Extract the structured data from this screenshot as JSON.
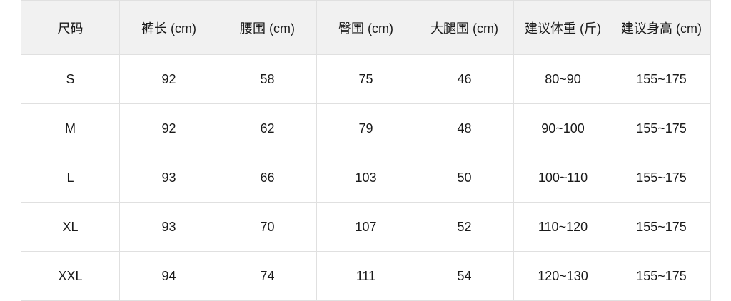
{
  "table": {
    "headers": [
      "尺码",
      "裤长 (cm)",
      "腰围 (cm)",
      "臀围 (cm)",
      "大腿围 (cm)",
      "建议体重 (斤)",
      "建议身高 (cm)"
    ],
    "rows": [
      [
        "S",
        "92",
        "58",
        "75",
        "46",
        "80~90",
        "155~175"
      ],
      [
        "M",
        "92",
        "62",
        "79",
        "48",
        "90~100",
        "155~175"
      ],
      [
        "L",
        "93",
        "66",
        "103",
        "50",
        "100~110",
        "155~175"
      ],
      [
        "XL",
        "93",
        "70",
        "107",
        "52",
        "110~120",
        "155~175"
      ],
      [
        "XXL",
        "94",
        "74",
        "111",
        "54",
        "120~130",
        "155~175"
      ]
    ]
  }
}
